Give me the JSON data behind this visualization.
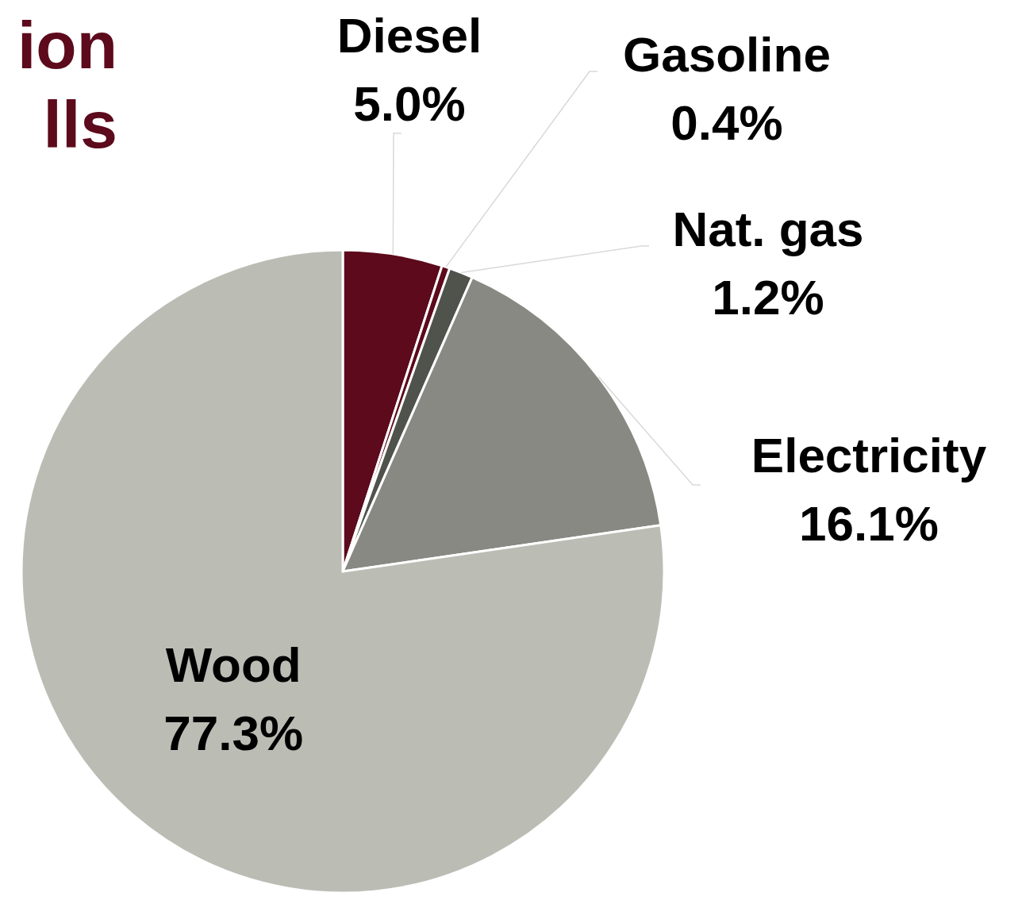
{
  "chart_data": {
    "type": "pie",
    "title": "ion\nlls",
    "categories": [
      "Diesel",
      "Gasoline",
      "Nat. gas",
      "Electricity",
      "Wood"
    ],
    "values": [
      5.0,
      0.4,
      1.2,
      16.1,
      77.3
    ],
    "value_labels": [
      "5.0%",
      "0.4%",
      "1.2%",
      "16.1%",
      "77.3%"
    ],
    "colors": [
      "#5c0a1c",
      "#5c0a1c",
      "#50534c",
      "#878982",
      "#bbbdb5"
    ],
    "legend": false
  }
}
